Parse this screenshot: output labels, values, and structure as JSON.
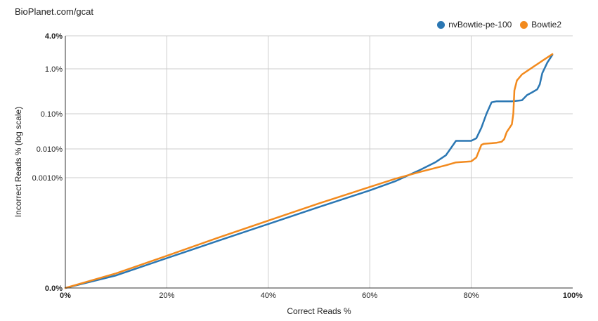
{
  "site_label": "BioPlanet.com/gcat",
  "colors": {
    "nvbowtie": "#2b77b3",
    "bowtie2": "#f28a1e",
    "grid": "#cccccc",
    "axis": "#333333"
  },
  "chart_data": {
    "type": "line",
    "title": "",
    "xlabel": "Correct Reads %",
    "ylabel": "Incorrect Reads % (log scale)",
    "x_scale": "linear",
    "y_scale": "log",
    "xlim": [
      0,
      100
    ],
    "ylim": [
      0,
      4.0
    ],
    "grid": true,
    "legend_position": "top-right",
    "x_ticks": [
      {
        "value": 0,
        "label": "0%",
        "bold": true
      },
      {
        "value": 20,
        "label": "20%",
        "bold": false
      },
      {
        "value": 40,
        "label": "40%",
        "bold": false
      },
      {
        "value": 60,
        "label": "60%",
        "bold": false
      },
      {
        "value": 80,
        "label": "80%",
        "bold": false
      },
      {
        "value": 100,
        "label": "100%",
        "bold": true
      }
    ],
    "y_ticks": [
      {
        "value": 0,
        "label": "0.0%",
        "bold": true
      },
      {
        "value": 0.001,
        "label": "0.0010%",
        "bold": false
      },
      {
        "value": 0.01,
        "label": "0.010%",
        "bold": false
      },
      {
        "value": 0.1,
        "label": "0.10%",
        "bold": false
      },
      {
        "value": 1.0,
        "label": "1.0%",
        "bold": false
      },
      {
        "value": 4.0,
        "label": "4.0%",
        "bold": true
      }
    ],
    "series": [
      {
        "name": "nvBowtie-pe-100",
        "color_key": "nvbowtie",
        "x": [
          0,
          10,
          20,
          30,
          40,
          50,
          60,
          65,
          70,
          73,
          75,
          77,
          78.5,
          80,
          81,
          82,
          83,
          84,
          85,
          86,
          88,
          90,
          91,
          92,
          93,
          93.5,
          94,
          95,
          96
        ],
        "y": [
          0,
          2.2e-06,
          6.5e-06,
          1.9e-05,
          5.5e-05,
          0.00016,
          0.00045,
          0.0008,
          0.0019,
          0.0035,
          0.006,
          0.017,
          0.017,
          0.017,
          0.02,
          0.04,
          0.1,
          0.18,
          0.19,
          0.19,
          0.19,
          0.2,
          0.26,
          0.3,
          0.35,
          0.45,
          0.8,
          1.3,
          1.8
        ]
      },
      {
        "name": "Bowtie2",
        "color_key": "bowtie2",
        "x": [
          0,
          10,
          20,
          30,
          40,
          50,
          60,
          65,
          70,
          75,
          77,
          80,
          81,
          82,
          82.5,
          84,
          85,
          86,
          86.5,
          87,
          88,
          88.3,
          88.5,
          89,
          90,
          92,
          94,
          96
        ],
        "y": [
          0,
          2.5e-06,
          7.5e-06,
          2.3e-05,
          6.8e-05,
          0.0002,
          0.00056,
          0.00093,
          0.0016,
          0.0027,
          0.0034,
          0.0037,
          0.005,
          0.013,
          0.014,
          0.0145,
          0.015,
          0.016,
          0.019,
          0.03,
          0.05,
          0.1,
          0.33,
          0.55,
          0.75,
          1.05,
          1.4,
          1.85
        ]
      }
    ]
  }
}
